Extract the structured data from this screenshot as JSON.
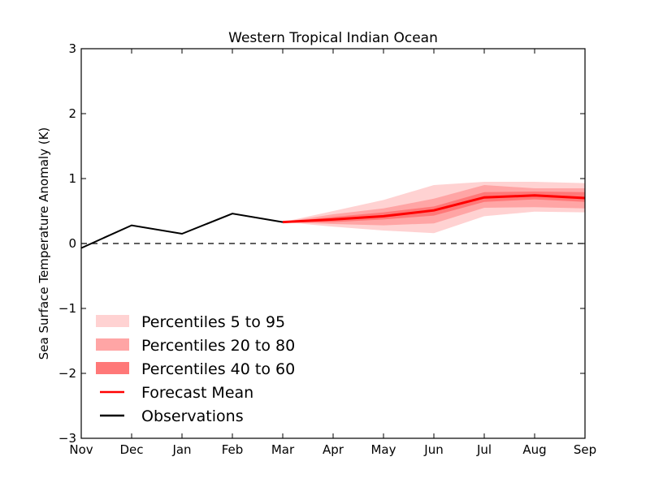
{
  "chart_data": {
    "type": "line",
    "title": "Western Tropical Indian Ocean",
    "xlabel": "",
    "ylabel": "Sea Surface Temperature Anomaly (K)",
    "ylim": [
      -3,
      3
    ],
    "yticks": [
      3,
      2,
      1,
      0,
      -1,
      -2,
      -3
    ],
    "ytick_labels": [
      "3",
      "2",
      "1",
      "0",
      "−1",
      "−2",
      "−3"
    ],
    "categories": [
      "Nov",
      "Dec",
      "Jan",
      "Feb",
      "Mar",
      "Apr",
      "May",
      "Jun",
      "Jul",
      "Aug",
      "Sep"
    ],
    "grid": false,
    "reference_line": {
      "y": 0,
      "style": "dashed",
      "color": "#000000"
    },
    "observations": {
      "name": "Observations",
      "color": "#000000",
      "x": [
        "Nov",
        "Dec",
        "Jan",
        "Feb",
        "Mar"
      ],
      "values": [
        -0.07,
        0.28,
        0.15,
        0.46,
        0.33
      ]
    },
    "forecast_mean": {
      "name": "Forecast Mean",
      "color": "#ff0000",
      "x": [
        "Mar",
        "Apr",
        "May",
        "Jun",
        "Jul",
        "Aug",
        "Sep"
      ],
      "values": [
        0.33,
        0.37,
        0.42,
        0.51,
        0.71,
        0.74,
        0.7
      ]
    },
    "bands": [
      {
        "name": "Percentiles 5 to 95",
        "color": "#ffd2d2",
        "x": [
          "Mar",
          "Apr",
          "May",
          "Jun",
          "Jul",
          "Aug",
          "Sep"
        ],
        "upper": [
          0.33,
          0.5,
          0.67,
          0.9,
          0.95,
          0.95,
          0.93
        ],
        "lower": [
          0.33,
          0.26,
          0.2,
          0.16,
          0.42,
          0.49,
          0.48
        ]
      },
      {
        "name": "Percentiles 20 to 80",
        "color": "#ffa5a5",
        "x": [
          "Mar",
          "Apr",
          "May",
          "Jun",
          "Jul",
          "Aug",
          "Sep"
        ],
        "upper": [
          0.33,
          0.45,
          0.54,
          0.69,
          0.9,
          0.85,
          0.85
        ],
        "lower": [
          0.33,
          0.3,
          0.28,
          0.31,
          0.55,
          0.56,
          0.54
        ]
      },
      {
        "name": "Percentiles 40 to 60",
        "color": "#ff7878",
        "x": [
          "Mar",
          "Apr",
          "May",
          "Jun",
          "Jul",
          "Aug",
          "Sep"
        ],
        "upper": [
          0.33,
          0.41,
          0.48,
          0.57,
          0.79,
          0.8,
          0.79
        ],
        "lower": [
          0.33,
          0.33,
          0.37,
          0.43,
          0.64,
          0.68,
          0.64
        ]
      }
    ],
    "legend": {
      "placement": "lower-left",
      "entries": [
        {
          "label": "Percentiles 5 to 95",
          "kind": "patch",
          "color": "#ffd2d2"
        },
        {
          "label": "Percentiles 20 to 80",
          "kind": "patch",
          "color": "#ffa5a5"
        },
        {
          "label": "Percentiles 40 to 60",
          "kind": "patch",
          "color": "#ff7878"
        },
        {
          "label": "Forecast Mean",
          "kind": "line",
          "color": "#ff0000"
        },
        {
          "label": "Observations",
          "kind": "line",
          "color": "#000000"
        }
      ]
    }
  }
}
